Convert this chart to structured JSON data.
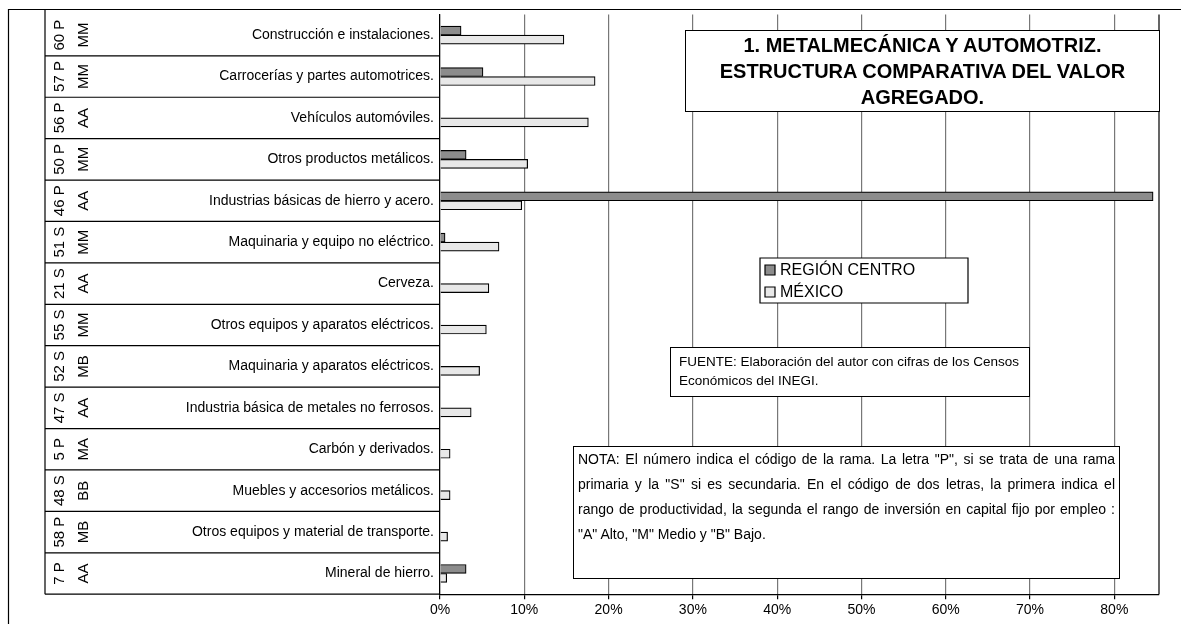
{
  "chart_data": {
    "type": "bar",
    "orientation": "horizontal",
    "title": "1. METALMECÁNICA Y AUTOMOTRIZ. ESTRUCTURA COMPARATIVA DEL VALOR AGREGADO.",
    "categories": [
      "Construcción e instalaciones.",
      "Carrocerías y partes automotrices.",
      "Vehículos automóviles.",
      "Otros productos metálicos.",
      "Industrias básicas de hierro y acero.",
      "Maquinaria y equipo no eléctrico.",
      "Cerveza.",
      "Otros equipos y aparatos eléctricos.",
      "Maquinaria y aparatos eléctricos.",
      "Industria básica de metales no ferrosos.",
      "Carbón y derivados.",
      "Muebles y accesorios metálicos.",
      "Otros equipos y material de transporte.",
      "Mineral de hierro."
    ],
    "series": [
      {
        "name": "REGIÓN CENTRO",
        "color": "#8c8c8c",
        "values": [
          2.5,
          5.1,
          0,
          3.1,
          84.6,
          0.6,
          0,
          0,
          0,
          0,
          0,
          0,
          0,
          3.1
        ]
      },
      {
        "name": "MÉXICO",
        "color": "#e8e8e8",
        "values": [
          14.7,
          18.4,
          17.6,
          10.4,
          9.7,
          7.0,
          5.8,
          5.5,
          4.7,
          3.7,
          1.2,
          1.2,
          0.9,
          0.8
        ]
      }
    ],
    "xlim": [
      0,
      85.3
    ],
    "xticks": [
      {
        "value": 0,
        "label": "0%"
      },
      {
        "value": 10,
        "label": "10%"
      },
      {
        "value": 20,
        "label": "20%"
      },
      {
        "value": 30,
        "label": "30%"
      },
      {
        "value": 40,
        "label": "40%"
      },
      {
        "value": 50,
        "label": "50%"
      },
      {
        "value": 60,
        "label": "60%"
      },
      {
        "value": 70,
        "label": "70%"
      },
      {
        "value": 80,
        "label": "80%"
      }
    ],
    "grid": "x",
    "legend": "right",
    "annotations": [
      "60 P MM",
      "57 P MM",
      "56 P AA",
      "50 P MM",
      "46 P AA",
      "51 S MM",
      "21 S AA",
      "55 S MM",
      "52 S MB",
      "47 S AA",
      "5 P MA",
      "48 S BB",
      "58 P MB",
      "7 P AA",
      "FUENTE: Elaboración del autor con cifras de los Censos Económicos del INEGI.",
      "NOTA: El número indica el código de la rama. La letra \"P\", si se trata de una rama primaria y la \"S\" si es secundaria. En el código de dos letras, la primera indica el rango de productividad, la segunda el rango de inversión en capital fijo por empleo : \"A\" Alto, \"M\" Medio y \"B\" Bajo."
    ]
  }
}
